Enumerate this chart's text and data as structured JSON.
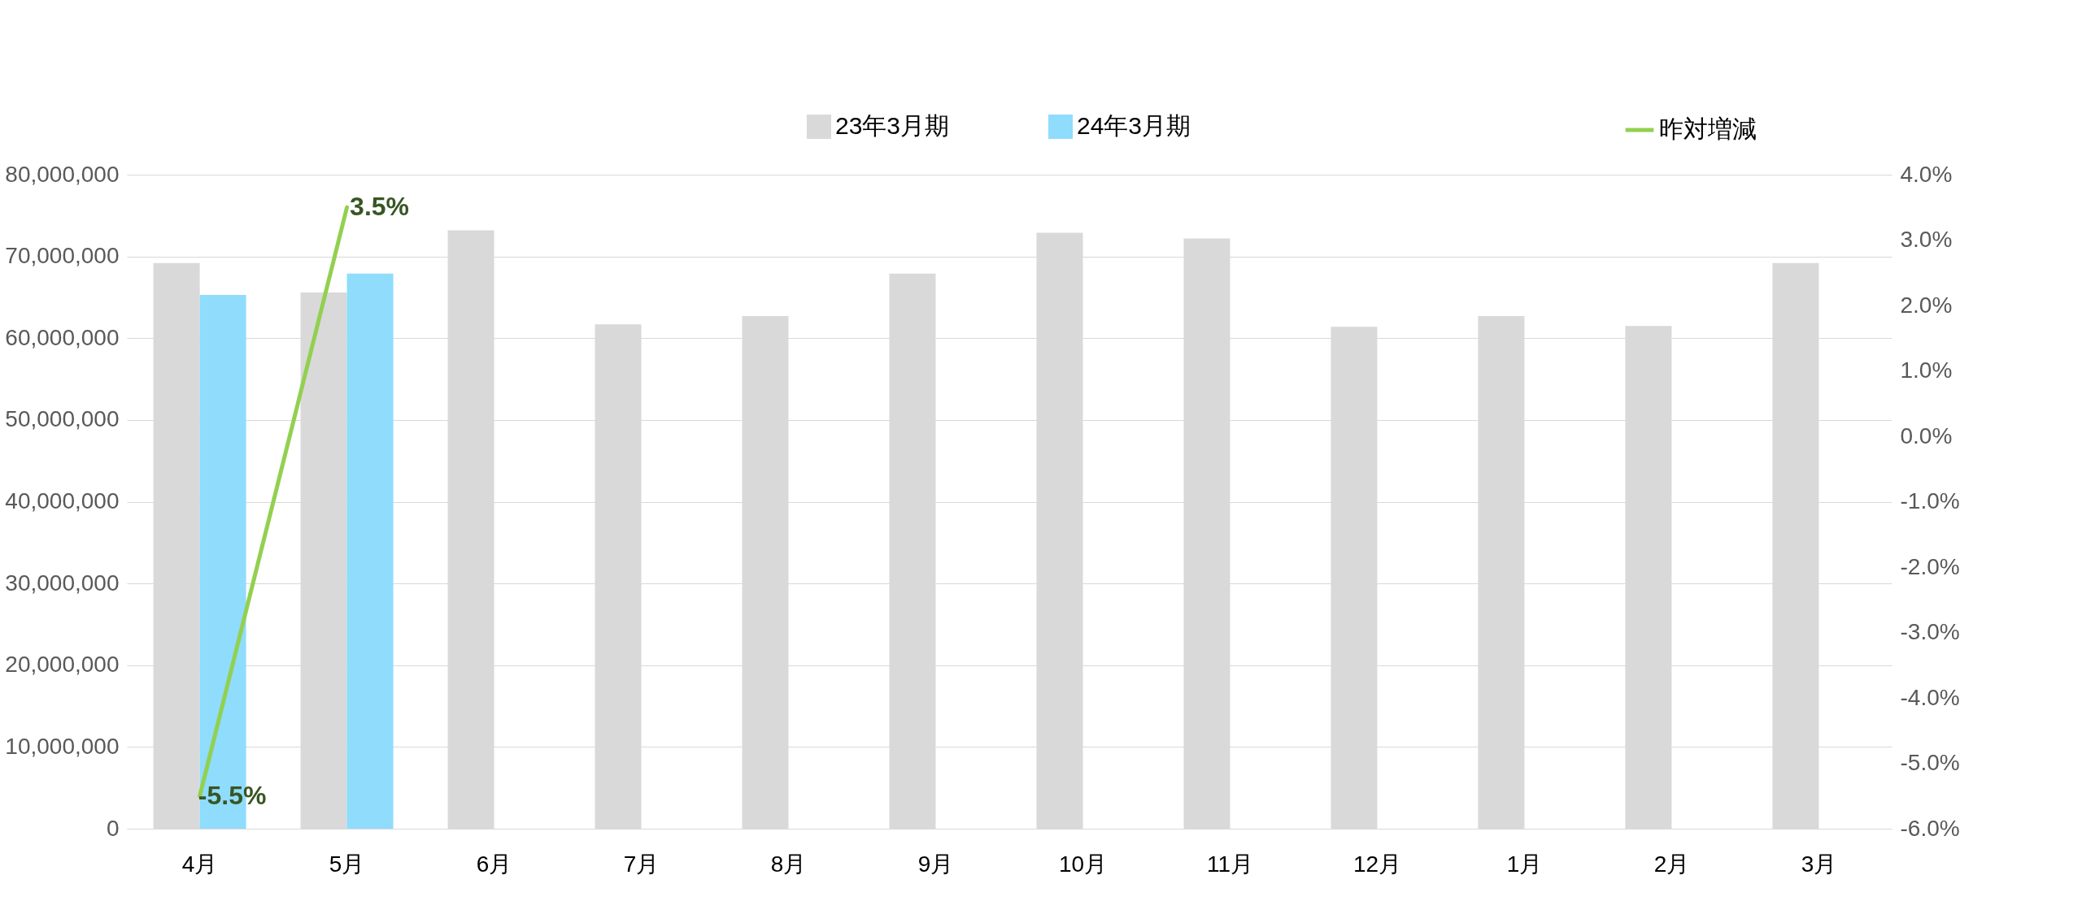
{
  "chart_data": {
    "type": "bar",
    "categories": [
      "4月",
      "5月",
      "6月",
      "7月",
      "8月",
      "9月",
      "10月",
      "11月",
      "12月",
      "1月",
      "2月",
      "3月"
    ],
    "series": [
      {
        "name": "23年3月期",
        "color": "#d9d9d9",
        "values": [
          69200000,
          65600000,
          73200000,
          61700000,
          62700000,
          67900000,
          72900000,
          72200000,
          61400000,
          62700000,
          61500000,
          69200000
        ]
      },
      {
        "name": "24年3月期",
        "color": "#8fdcfd",
        "values": [
          65300000,
          67900000,
          null,
          null,
          null,
          null,
          null,
          null,
          null,
          null,
          null,
          null
        ]
      },
      {
        "name": "昨対増減",
        "type": "line",
        "axis": "y2",
        "color": "#92d050",
        "values": [
          -5.5,
          3.5,
          null,
          null,
          null,
          null,
          null,
          null,
          null,
          null,
          null,
          null
        ],
        "value_labels": [
          "-5.5%",
          "3.5%",
          null,
          null,
          null,
          null,
          null,
          null,
          null,
          null,
          null,
          null
        ]
      }
    ],
    "ylim": [
      0,
      80000000
    ],
    "yticks": [
      0,
      {
        "value": 10000000,
        "label": "10,000,000"
      },
      {
        "value": 20000000,
        "label": "20,000,000"
      },
      {
        "value": 30000000,
        "label": "30,000,000"
      },
      {
        "value": 40000000,
        "label": "40,000,000"
      },
      {
        "value": 50000000,
        "label": "50,000,000"
      },
      {
        "value": 60000000,
        "label": "60,000,000"
      },
      {
        "value": 70000000,
        "label": "70,000,000"
      },
      {
        "value": 80000000,
        "label": "80,000,000"
      }
    ],
    "y2lim": [
      -6,
      4
    ],
    "y2ticks": [
      {
        "value": -6,
        "label": "-6.0%"
      },
      {
        "value": -5,
        "label": "-5.0%"
      },
      {
        "value": -4,
        "label": "-4.0%"
      },
      {
        "value": -3,
        "label": "-3.0%"
      },
      {
        "value": -2,
        "label": "-2.0%"
      },
      {
        "value": -1,
        "label": "-1.0%"
      },
      {
        "value": 0,
        "label": "0.0%"
      },
      {
        "value": 1,
        "label": "1.0%"
      },
      {
        "value": 2,
        "label": "2.0%"
      },
      {
        "value": 3,
        "label": "3.0%"
      },
      {
        "value": 4,
        "label": "4.0%"
      }
    ],
    "grid": "y",
    "legend": "top"
  }
}
